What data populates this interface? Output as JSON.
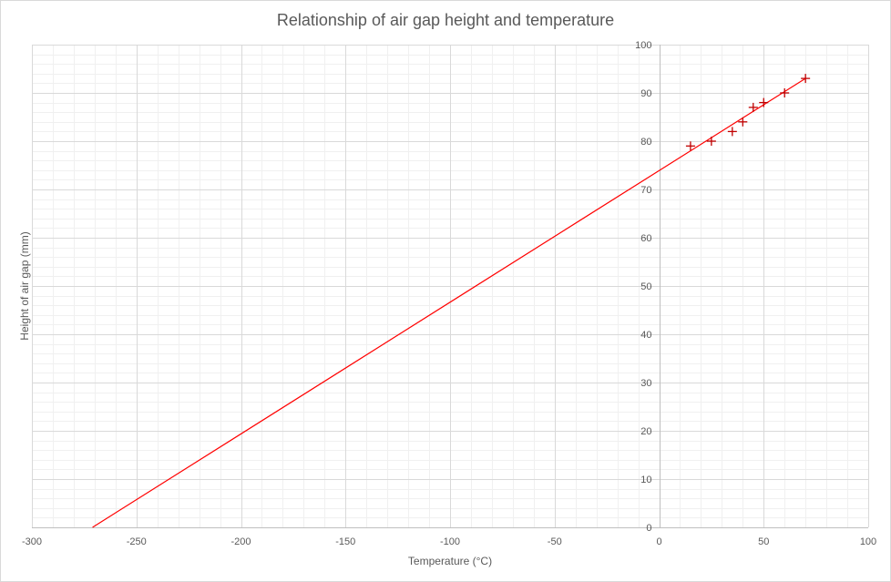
{
  "chart_data": {
    "type": "scatter",
    "title": "Relationship of air gap height and temperature",
    "xlabel": "Temperature  (°C)",
    "ylabel": "Height of air gap (mm)",
    "xlim": [
      -300,
      100
    ],
    "ylim": [
      0,
      100
    ],
    "x_major_step": 50,
    "y_major_step": 10,
    "x_ticks": [
      "-300",
      "-250",
      "-200",
      "-150",
      "-100",
      "-50",
      "0",
      "50",
      "100"
    ],
    "y_ticks": [
      "0",
      "10",
      "20",
      "30",
      "40",
      "50",
      "60",
      "70",
      "80",
      "90",
      "100"
    ],
    "grid": true,
    "minor_grid": true,
    "legend": "none",
    "marker": "plus",
    "series": [
      {
        "points": [
          {
            "x": 15,
            "y": 79
          },
          {
            "x": 25,
            "y": 80
          },
          {
            "x": 35,
            "y": 82
          },
          {
            "x": 40,
            "y": 84
          },
          {
            "x": 45,
            "y": 87
          },
          {
            "x": 50,
            "y": 88
          },
          {
            "x": 60,
            "y": 90
          },
          {
            "x": 70,
            "y": 93
          }
        ],
        "color": "#c00000"
      }
    ],
    "trendline": {
      "type": "linear",
      "from": {
        "x": -271,
        "y": 0
      },
      "to": {
        "x": 70,
        "y": 93
      },
      "color": "#ff0000"
    },
    "colors": {
      "major_grid": "#d9d9d9",
      "minor_grid": "#f0f0f0",
      "axis": "#bfbfbf",
      "text": "#595959"
    }
  }
}
